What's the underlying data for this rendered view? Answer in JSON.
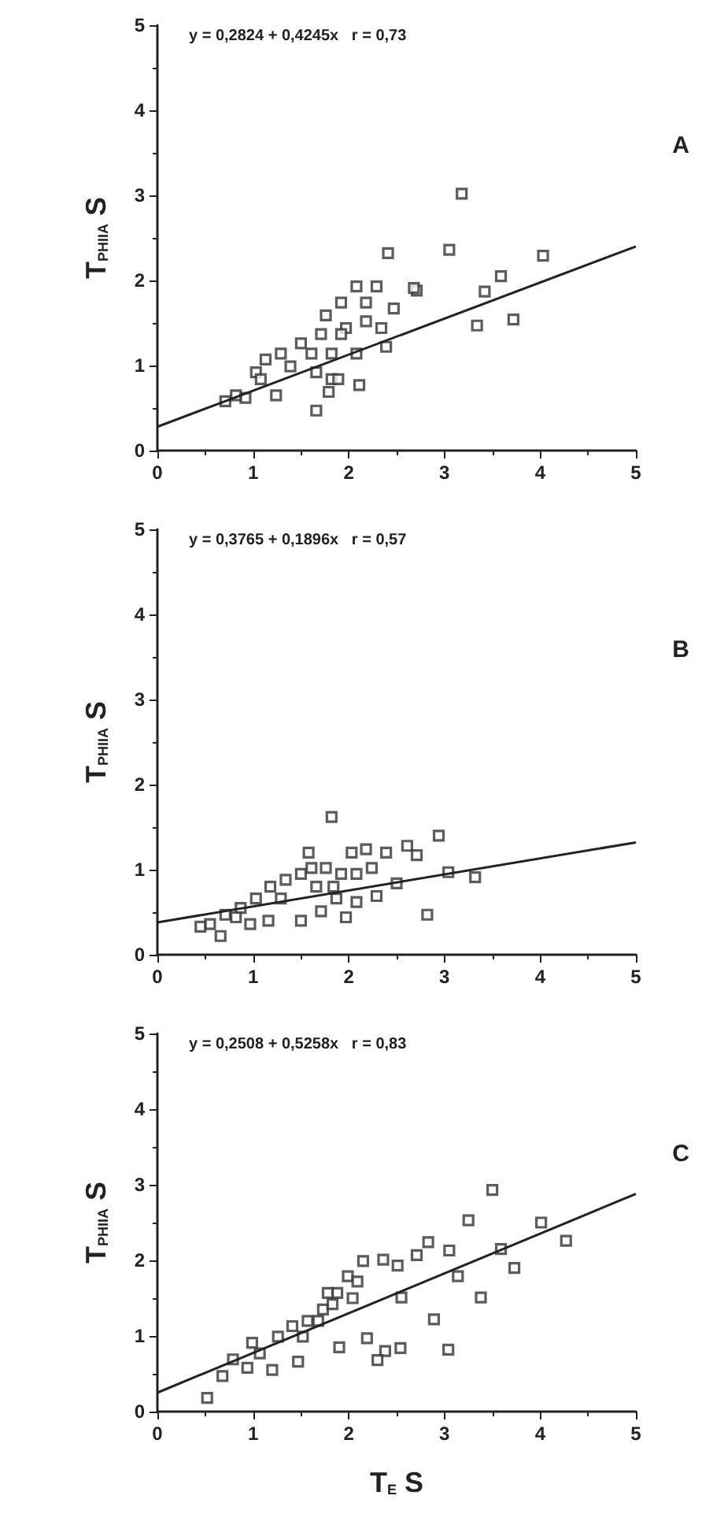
{
  "chart_data": [
    {
      "type": "scatter",
      "ylabel": "T$_{PHIIA}$ S",
      "annotations": [
        "y = 0,2824 + 0,4245x   r = 0,73",
        "A"
      ],
      "xlim": [
        0,
        5
      ],
      "ylim": [
        0,
        5
      ],
      "xticks": [
        0,
        1,
        2,
        3,
        4,
        5
      ],
      "yticks": [
        0,
        1,
        2,
        3,
        4,
        5
      ],
      "grid": false,
      "marker": "square",
      "series": [
        {
          "type": "scatter",
          "color": "#333333",
          "x": [
            3.18,
            3.05,
            2.41,
            4.03,
            3.59,
            3.42,
            3.34,
            3.72,
            2.71,
            2.68,
            2.47,
            2.39,
            2.11,
            2.08,
            2.29,
            2.08,
            1.92,
            1.76,
            1.71,
            1.61,
            1.66,
            1.82,
            1.66,
            1.79,
            1.39,
            1.24,
            1.13,
            1.03,
            0.92,
            0.71,
            0.82,
            1.29,
            1.5,
            1.97,
            2.18,
            1.92,
            2.34,
            2.18,
            1.82,
            1.89,
            1.08
          ],
          "values": [
            3.02,
            2.36,
            2.32,
            2.29,
            2.05,
            1.87,
            1.47,
            1.54,
            1.88,
            1.91,
            1.67,
            1.22,
            0.77,
            1.14,
            1.93,
            1.93,
            1.74,
            1.59,
            1.37,
            1.14,
            0.92,
            0.84,
            0.47,
            0.69,
            0.99,
            0.65,
            1.07,
            0.92,
            0.62,
            0.58,
            0.65,
            1.14,
            1.26,
            1.44,
            1.52,
            1.37,
            1.44,
            1.74,
            1.14,
            0.84,
            0.84
          ]
        },
        {
          "type": "line",
          "color": "#222222",
          "marker": "none",
          "line_style": "solid",
          "x": [
            0,
            5
          ],
          "values": [
            0.28,
            2.4
          ]
        }
      ]
    },
    {
      "type": "scatter",
      "ylabel": "T$_{PHIIA}$ S",
      "annotations": [
        "y = 0,3765 + 0,1896x   r = 0,57",
        "B"
      ],
      "xlim": [
        0,
        5
      ],
      "ylim": [
        0,
        5
      ],
      "xticks": [
        0,
        1,
        2,
        3,
        4,
        5
      ],
      "yticks": [
        0,
        1,
        2,
        3,
        4,
        5
      ],
      "grid": false,
      "marker": "square",
      "series": [
        {
          "type": "scatter",
          "color": "#333333",
          "x": [
            1.82,
            2.94,
            3.04,
            3.32,
            2.82,
            2.61,
            2.39,
            2.18,
            2.03,
            1.58,
            1.5,
            1.34,
            1.18,
            1.03,
            0.87,
            0.71,
            0.55,
            0.66,
            1.16,
            0.97,
            1.5,
            1.71,
            1.87,
            1.97,
            2.08,
            2.29,
            2.5,
            2.71,
            1.76,
            1.92,
            1.66,
            2.08,
            2.24,
            1.29,
            0.82,
            0.45,
            1.61,
            1.84
          ],
          "values": [
            1.62,
            1.4,
            0.97,
            0.91,
            0.47,
            1.28,
            1.2,
            1.24,
            1.2,
            1.2,
            0.95,
            0.88,
            0.8,
            0.66,
            0.55,
            0.47,
            0.36,
            0.22,
            0.4,
            0.36,
            0.4,
            0.51,
            0.66,
            0.44,
            0.62,
            0.69,
            0.84,
            1.17,
            1.02,
            0.95,
            0.8,
            0.95,
            1.02,
            0.66,
            0.44,
            0.33,
            1.02,
            0.8
          ]
        },
        {
          "type": "line",
          "color": "#222222",
          "marker": "none",
          "line_style": "solid",
          "x": [
            0,
            5
          ],
          "values": [
            0.38,
            1.32
          ]
        }
      ]
    },
    {
      "type": "scatter",
      "ylabel": "T$_{PHIIA}$ S",
      "xlabel": "T$_{E}$ S",
      "annotations": [
        "y = 0,2508 + 0,5258x   r = 0,83",
        "C"
      ],
      "xlim": [
        0,
        5
      ],
      "ylim": [
        0,
        5
      ],
      "xticks": [
        0,
        1,
        2,
        3,
        4,
        5
      ],
      "yticks": [
        0,
        1,
        2,
        3,
        4,
        5
      ],
      "grid": false,
      "marker": "square",
      "series": [
        {
          "type": "scatter",
          "color": "#333333",
          "x": [
            3.5,
            3.25,
            4.01,
            4.27,
            3.59,
            3.73,
            3.38,
            3.14,
            3.05,
            2.83,
            2.71,
            2.55,
            2.89,
            3.04,
            2.54,
            2.38,
            2.3,
            2.19,
            1.9,
            2.51,
            2.36,
            2.15,
            1.99,
            1.88,
            1.73,
            1.57,
            1.47,
            1.41,
            1.26,
            1.2,
            1.07,
            0.94,
            0.79,
            0.68,
            0.52,
            0.99,
            1.78,
            1.68,
            2.09,
            2.04,
            1.52,
            1.83
          ],
          "values": [
            2.93,
            2.53,
            2.5,
            2.26,
            2.15,
            1.9,
            1.51,
            1.79,
            2.13,
            2.24,
            2.07,
            1.51,
            1.22,
            0.82,
            0.84,
            0.8,
            0.68,
            0.97,
            0.85,
            1.93,
            2.01,
            1.99,
            1.79,
            1.57,
            1.35,
            1.2,
            0.66,
            1.13,
            0.99,
            0.55,
            0.77,
            0.58,
            0.69,
            0.47,
            0.18,
            0.91,
            1.57,
            1.2,
            1.72,
            1.5,
            0.99,
            1.42
          ]
        },
        {
          "type": "line",
          "color": "#222222",
          "marker": "none",
          "line_style": "solid",
          "x": [
            0,
            5
          ],
          "values": [
            0.25,
            2.88
          ]
        }
      ]
    }
  ]
}
